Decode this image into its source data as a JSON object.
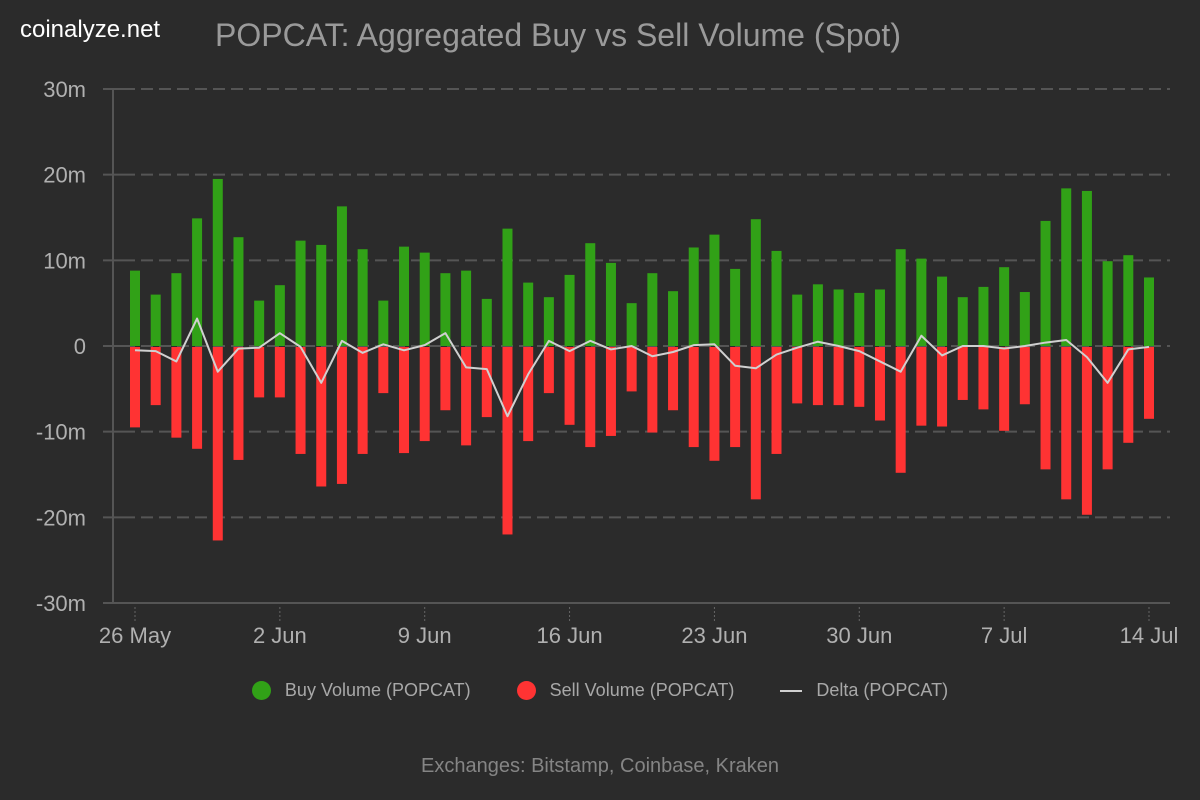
{
  "header": {
    "brand": "coinalyze.net",
    "title": "POPCAT: Aggregated Buy vs Sell Volume (Spot)"
  },
  "legend": [
    {
      "label": "Buy Volume (POPCAT)",
      "color": "#31a117",
      "symbol": "dot"
    },
    {
      "label": "Sell Volume (POPCAT)",
      "color": "#ff3333",
      "symbol": "dot"
    },
    {
      "label": "Delta (POPCAT)",
      "color": "#d0d0d0",
      "symbol": "line"
    }
  ],
  "footer": "Exchanges: Bitstamp, Coinbase, Kraken",
  "chart_data": {
    "type": "bar",
    "title": "POPCAT: Aggregated Buy vs Sell Volume (Spot)",
    "xlabel": "",
    "ylabel": "",
    "unit": "m",
    "ylim": [
      -30,
      30
    ],
    "yticks": [
      30,
      20,
      10,
      0,
      -10,
      -20,
      -30
    ],
    "ytick_labels": [
      "30m",
      "20m",
      "10m",
      "0",
      "-10m",
      "-20m",
      "-30m"
    ],
    "xtick_labels": [
      "26 May",
      "2 Jun",
      "9 Jun",
      "16 Jun",
      "23 Jun",
      "30 Jun",
      "7 Jul",
      "14 Jul"
    ],
    "xtick_indices": [
      0,
      7,
      14,
      21,
      28,
      35,
      42,
      49
    ],
    "grid": true,
    "legend_position": "bottom",
    "x": [
      "26 May",
      "27 May",
      "28 May",
      "29 May",
      "30 May",
      "31 May",
      "1 Jun",
      "2 Jun",
      "3 Jun",
      "4 Jun",
      "5 Jun",
      "6 Jun",
      "7 Jun",
      "8 Jun",
      "9 Jun",
      "10 Jun",
      "11 Jun",
      "12 Jun",
      "13 Jun",
      "14 Jun",
      "15 Jun",
      "16 Jun",
      "17 Jun",
      "18 Jun",
      "19 Jun",
      "20 Jun",
      "21 Jun",
      "22 Jun",
      "23 Jun",
      "24 Jun",
      "25 Jun",
      "26 Jun",
      "27 Jun",
      "28 Jun",
      "29 Jun",
      "30 Jun",
      "1 Jul",
      "2 Jul",
      "3 Jul",
      "4 Jul",
      "5 Jul",
      "6 Jul",
      "7 Jul",
      "8 Jul",
      "9 Jul",
      "10 Jul",
      "11 Jul",
      "12 Jul",
      "13 Jul",
      "14 Jul"
    ],
    "series": [
      {
        "name": "Buy Volume (POPCAT)",
        "type": "bar",
        "color": "#31a117",
        "values": [
          8.8,
          6.0,
          8.5,
          14.9,
          19.5,
          12.7,
          5.3,
          7.1,
          12.3,
          11.8,
          16.3,
          11.3,
          5.3,
          11.6,
          10.9,
          8.5,
          8.8,
          5.5,
          13.7,
          7.4,
          5.7,
          8.3,
          12.0,
          9.7,
          5.0,
          8.5,
          6.4,
          11.5,
          13.0,
          9.0,
          14.8,
          11.1,
          6.0,
          7.2,
          6.6,
          6.2,
          6.6,
          11.3,
          10.2,
          8.1,
          5.7,
          6.9,
          9.2,
          6.3,
          14.6,
          18.4,
          18.1,
          9.9,
          10.6,
          8.0
        ]
      },
      {
        "name": "Sell Volume (POPCAT)",
        "type": "bar",
        "color": "#ff3333",
        "values": [
          -9.5,
          -6.9,
          -10.7,
          -12.0,
          -22.7,
          -13.3,
          -6.0,
          -6.0,
          -12.6,
          -16.4,
          -16.1,
          -12.6,
          -5.5,
          -12.5,
          -11.1,
          -7.5,
          -11.6,
          -8.3,
          -22.0,
          -11.1,
          -5.5,
          -9.2,
          -11.8,
          -10.5,
          -5.3,
          -10.1,
          -7.5,
          -11.8,
          -13.4,
          -11.8,
          -17.9,
          -12.6,
          -6.7,
          -6.9,
          -6.9,
          -7.1,
          -8.7,
          -14.8,
          -9.3,
          -9.4,
          -6.3,
          -7.4,
          -9.9,
          -6.8,
          -14.4,
          -17.9,
          -19.7,
          -14.4,
          -11.3,
          -8.5
        ]
      },
      {
        "name": "Delta (POPCAT)",
        "type": "line",
        "color": "#d0d0d0",
        "values": [
          -0.5,
          -0.6,
          -1.8,
          3.2,
          -3.0,
          -0.3,
          -0.2,
          1.5,
          -0.1,
          -4.3,
          0.6,
          -0.8,
          0.2,
          -0.5,
          0.1,
          1.5,
          -2.5,
          -2.7,
          -8.2,
          -3.3,
          0.6,
          -0.6,
          0.6,
          -0.4,
          0.0,
          -1.2,
          -0.7,
          0.1,
          0.2,
          -2.3,
          -2.6,
          -1.0,
          -0.2,
          0.5,
          0.0,
          -0.6,
          -1.8,
          -3.0,
          1.2,
          -1.1,
          0.0,
          0.0,
          -0.3,
          0.0,
          0.4,
          0.7,
          -1.3,
          -4.3,
          -0.4,
          -0.1
        ]
      }
    ]
  }
}
